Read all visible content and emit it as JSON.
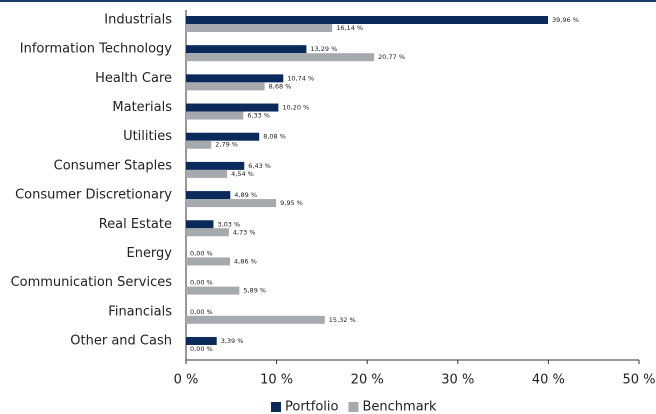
{
  "chart_data": {
    "type": "hbar",
    "categories": [
      "Industrials",
      "Information Technology",
      "Health Care",
      "Materials",
      "Utilities",
      "Consumer Staples",
      "Consumer Discretionary",
      "Real Estate",
      "Energy",
      "Communication Services",
      "Financials",
      "Other and Cash"
    ],
    "series": [
      {
        "name": "Portfolio",
        "color": "#0b2a5c",
        "values": [
          39.96,
          13.29,
          10.74,
          10.2,
          8.08,
          6.43,
          4.89,
          3.03,
          0.0,
          0.0,
          0.0,
          3.39
        ],
        "value_labels": [
          "39,96 %",
          "13,29 %",
          "10,74 %",
          "10,20 %",
          "8,08 %",
          "6,43 %",
          "4,89 %",
          "3,03 %",
          "0,00 %",
          "0,00 %",
          "0,00 %",
          "3,39 %"
        ]
      },
      {
        "name": "Benchmark",
        "color": "#a6a9ad",
        "values": [
          16.14,
          20.77,
          8.68,
          6.33,
          2.79,
          4.54,
          9.95,
          4.73,
          4.86,
          5.89,
          15.32,
          0.0
        ],
        "value_labels": [
          "16,14 %",
          "20,77 %",
          "8,68 %",
          "6,33 %",
          "2,79 %",
          "4,54 %",
          "9,95 %",
          "4,73 %",
          "4,86 %",
          "5,89 %",
          "15,32 %",
          "0,00 %"
        ]
      }
    ],
    "xlim": [
      0,
      50
    ],
    "xticks": [
      {
        "value": 0,
        "label": "0 %"
      },
      {
        "value": 10,
        "label": "10 %"
      },
      {
        "value": 20,
        "label": "20 %"
      },
      {
        "value": 30,
        "label": "30 %"
      },
      {
        "value": 40,
        "label": "40 %"
      },
      {
        "value": 50,
        "label": "50 %"
      }
    ],
    "legend": "bottom"
  }
}
